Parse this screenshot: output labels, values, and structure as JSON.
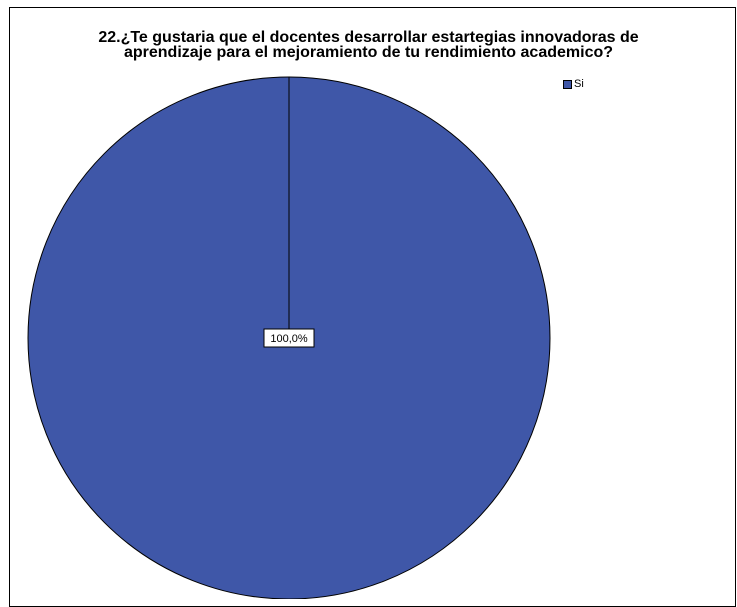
{
  "chart_data": {
    "type": "pie",
    "title": "22.¿Te gustaria que el docentes desarrollar estartegias innovadoras de aprendizaje para el mejoramiento de tu rendimiento academico?",
    "title_lines": [
      "22.¿Te gustaria que el docentes desarrollar estartegias innovadoras de",
      "aprendizaje para el mejoramiento de tu rendimiento academico?"
    ],
    "slices": [
      {
        "label": "Si",
        "value": 100.0,
        "display": "100,0%",
        "color": "#3f57a8"
      }
    ],
    "legend_position": "top-right"
  }
}
